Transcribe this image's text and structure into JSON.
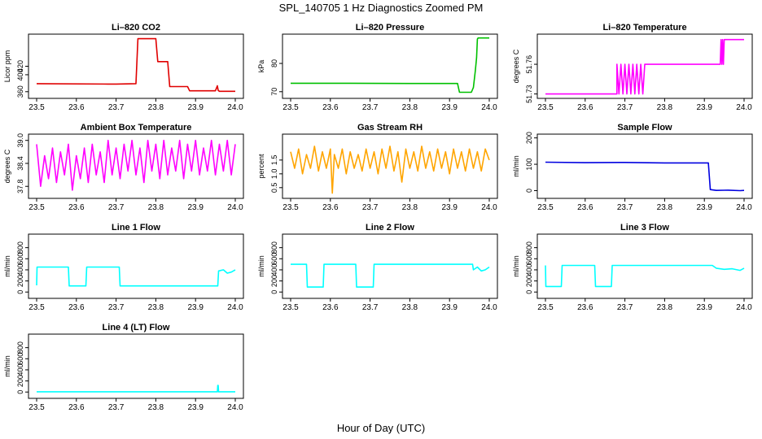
{
  "figure": {
    "title": "SPL_140705  1 Hz Diagnostics Zoomed PM",
    "xlabel": "Hour of Day (UTC)",
    "colors": {
      "red": "#e00000",
      "green": "#00c000",
      "magenta": "#ff00ff",
      "orange": "#ffa500",
      "blue": "#0000e0",
      "cyan": "#00ffff",
      "axis": "#000000"
    }
  },
  "chart_data": [
    {
      "id": "co2",
      "type": "line",
      "title": "Li–820 CO2",
      "ylabel": "Licor ppm",
      "color": "red",
      "xlim": [
        23.5,
        24.0
      ],
      "ylim": [
        350,
        490
      ],
      "xticks": [
        "23.5",
        "23.6",
        "23.7",
        "23.8",
        "23.9",
        "24.0"
      ],
      "yticks": [
        {
          "v": 360,
          "label": "360"
        },
        {
          "v": 400,
          "label": "400"
        },
        {
          "v": 420,
          "label": "420"
        }
      ],
      "x": [
        23.5,
        23.68,
        23.7,
        23.75,
        23.755,
        23.8,
        23.805,
        23.83,
        23.835,
        23.88,
        23.885,
        23.95,
        23.955,
        23.957,
        23.96,
        24.0
      ],
      "y": [
        379,
        378,
        378,
        379,
        485,
        485,
        431,
        431,
        372,
        372,
        362,
        362,
        374,
        363,
        361,
        361
      ]
    },
    {
      "id": "pressure",
      "type": "line",
      "title": "Li–820 Pressure",
      "ylabel": "kPa",
      "color": "green",
      "xlim": [
        23.5,
        24.0
      ],
      "ylim": [
        68.5,
        89.5
      ],
      "xticks": [
        "23.5",
        "23.6",
        "23.7",
        "23.8",
        "23.9",
        "24.0"
      ],
      "yticks": [
        {
          "v": 70,
          "label": "70"
        },
        {
          "v": 80,
          "label": "80"
        }
      ],
      "x": [
        23.5,
        23.65,
        23.8,
        23.92,
        23.925,
        23.955,
        23.96,
        23.965,
        23.968,
        23.97,
        23.972,
        24.0
      ],
      "y": [
        73.0,
        73.0,
        72.9,
        72.9,
        69.8,
        69.8,
        71.5,
        77.5,
        82.0,
        88.6,
        89.0,
        89.0
      ]
    },
    {
      "id": "licor_temp",
      "type": "line",
      "title": "Li–820 Temperature",
      "ylabel": "degrees C",
      "color": "magenta",
      "xlim": [
        23.5,
        24.0
      ],
      "ylim": [
        51.728,
        51.788
      ],
      "xticks": [
        "23.5",
        "23.6",
        "23.7",
        "23.8",
        "23.9",
        "24.0"
      ],
      "yticks": [
        {
          "v": 51.73,
          "label": "51.73"
        },
        {
          "v": 51.76,
          "label": "51.76"
        }
      ],
      "x": [
        23.5,
        23.68,
        23.68,
        23.685,
        23.69,
        23.695,
        23.7,
        23.705,
        23.71,
        23.715,
        23.72,
        23.725,
        23.73,
        23.735,
        23.74,
        23.745,
        23.75,
        23.755,
        23.94,
        23.942,
        23.944,
        23.946,
        23.948,
        23.95,
        23.952,
        24.0
      ],
      "y": [
        51.73,
        51.73,
        51.76,
        51.73,
        51.76,
        51.73,
        51.76,
        51.73,
        51.76,
        51.73,
        51.76,
        51.73,
        51.76,
        51.73,
        51.76,
        51.73,
        51.76,
        51.76,
        51.76,
        51.785,
        51.76,
        51.785,
        51.76,
        51.785,
        51.785,
        51.785
      ]
    },
    {
      "id": "box_temp",
      "type": "line",
      "title": "Ambient Box Temperature",
      "ylabel": "degrees C",
      "color": "magenta",
      "xlim": [
        23.5,
        24.0
      ],
      "ylim": [
        37.55,
        39.1
      ],
      "xticks": [
        "23.5",
        "23.6",
        "23.7",
        "23.8",
        "23.9",
        "24.0"
      ],
      "yticks": [
        {
          "v": 37.8,
          "label": "37.8"
        },
        {
          "v": 38.4,
          "label": "38.4"
        },
        {
          "v": 39.0,
          "label": "39.0"
        }
      ],
      "x": [
        23.5,
        23.51,
        23.52,
        23.53,
        23.54,
        23.55,
        23.56,
        23.57,
        23.58,
        23.59,
        23.6,
        23.61,
        23.62,
        23.63,
        23.64,
        23.65,
        23.66,
        23.67,
        23.68,
        23.69,
        23.7,
        23.71,
        23.72,
        23.73,
        23.74,
        23.75,
        23.76,
        23.77,
        23.78,
        23.79,
        23.8,
        23.81,
        23.82,
        23.83,
        23.84,
        23.85,
        23.86,
        23.87,
        23.88,
        23.89,
        23.9,
        23.91,
        23.92,
        23.93,
        23.94,
        23.95,
        23.96,
        23.97,
        23.98,
        23.99,
        24.0
      ],
      "y": [
        38.9,
        37.8,
        38.6,
        38.0,
        38.8,
        37.9,
        38.7,
        38.1,
        38.9,
        37.7,
        38.6,
        38.0,
        38.8,
        37.9,
        38.9,
        38.1,
        38.7,
        37.9,
        39.0,
        38.1,
        38.8,
        38.0,
        38.9,
        38.2,
        39.0,
        38.1,
        38.8,
        37.9,
        39.0,
        38.2,
        38.9,
        38.0,
        39.0,
        38.1,
        38.8,
        38.2,
        39.0,
        38.0,
        38.9,
        38.2,
        39.0,
        38.1,
        38.8,
        38.2,
        39.0,
        38.1,
        38.9,
        38.2,
        39.0,
        38.1,
        38.9
      ]
    },
    {
      "id": "rh",
      "type": "line",
      "title": "Gas Stream RH",
      "ylabel": "percent",
      "color": "orange",
      "xlim": [
        23.5,
        24.0
      ],
      "ylim": [
        0.2,
        2.35
      ],
      "xticks": [
        "23.5",
        "23.6",
        "23.7",
        "23.8",
        "23.9",
        "24.0"
      ],
      "yticks": [
        {
          "v": 0.5,
          "label": "0.5"
        },
        {
          "v": 1.0,
          "label": "1.0"
        },
        {
          "v": 1.5,
          "label": "1.5"
        }
      ],
      "x": [
        23.5,
        23.51,
        23.52,
        23.53,
        23.54,
        23.55,
        23.56,
        23.57,
        23.58,
        23.59,
        23.6,
        23.605,
        23.61,
        23.62,
        23.63,
        23.64,
        23.65,
        23.66,
        23.67,
        23.68,
        23.69,
        23.7,
        23.71,
        23.72,
        23.73,
        23.74,
        23.75,
        23.76,
        23.77,
        23.78,
        23.79,
        23.8,
        23.81,
        23.82,
        23.83,
        23.84,
        23.85,
        23.86,
        23.87,
        23.88,
        23.89,
        23.9,
        23.91,
        23.92,
        23.93,
        23.94,
        23.95,
        23.96,
        23.97,
        23.98,
        23.99,
        24.0
      ],
      "y": [
        1.8,
        1.2,
        1.9,
        1.0,
        1.7,
        1.2,
        2.0,
        1.1,
        1.8,
        1.2,
        1.9,
        0.3,
        1.7,
        1.2,
        1.9,
        1.0,
        1.8,
        1.2,
        1.7,
        1.1,
        1.9,
        1.2,
        1.8,
        1.0,
        1.9,
        1.2,
        2.0,
        1.1,
        1.8,
        0.7,
        1.9,
        1.2,
        1.8,
        1.1,
        2.0,
        1.2,
        1.8,
        1.1,
        1.9,
        1.2,
        1.8,
        1.0,
        1.9,
        1.2,
        1.8,
        1.1,
        1.9,
        1.2,
        1.8,
        1.1,
        1.9,
        1.5
      ]
    },
    {
      "id": "sample_flow",
      "type": "line",
      "title": "Sample Flow",
      "ylabel": "ml/min",
      "color": "blue",
      "xlim": [
        23.5,
        24.0
      ],
      "ylim": [
        -20,
        205
      ],
      "xticks": [
        "23.5",
        "23.6",
        "23.7",
        "23.8",
        "23.9",
        "24.0"
      ],
      "yticks": [
        {
          "v": 0,
          "label": "0"
        },
        {
          "v": 100,
          "label": "100"
        },
        {
          "v": 200,
          "label": "200"
        }
      ],
      "x": [
        23.5,
        23.6,
        23.7,
        23.8,
        23.91,
        23.915,
        23.93,
        23.96,
        23.99,
        24.0
      ],
      "y": [
        108,
        106,
        107,
        105,
        105,
        4,
        1,
        2,
        0,
        1
      ]
    },
    {
      "id": "line1",
      "type": "line",
      "title": "Line 1 Flow",
      "ylabel": "ml/min",
      "color": "cyan",
      "xlim": [
        23.5,
        24.0
      ],
      "ylim": [
        -70,
        1000
      ],
      "xticks": [
        "23.5",
        "23.6",
        "23.7",
        "23.8",
        "23.9",
        "24.0"
      ],
      "yticks": [
        {
          "v": 0,
          "label": "0"
        },
        {
          "v": 200,
          "label": "200"
        },
        {
          "v": 400,
          "label": "400"
        },
        {
          "v": 600,
          "label": "600"
        },
        {
          "v": 800,
          "label": "800"
        }
      ],
      "x": [
        23.5,
        23.501,
        23.58,
        23.582,
        23.624,
        23.626,
        23.708,
        23.71,
        23.956,
        23.958,
        23.97,
        23.98,
        23.99,
        24.0
      ],
      "y": [
        120,
        450,
        450,
        110,
        110,
        450,
        450,
        110,
        110,
        380,
        400,
        340,
        360,
        400
      ]
    },
    {
      "id": "line2",
      "type": "line",
      "title": "Line 2 Flow",
      "ylabel": "ml/min",
      "color": "cyan",
      "xlim": [
        23.5,
        24.0
      ],
      "ylim": [
        -70,
        1000
      ],
      "xticks": [
        "23.5",
        "23.6",
        "23.7",
        "23.8",
        "23.9",
        "24.0"
      ],
      "yticks": [
        {
          "v": 0,
          "label": "0"
        },
        {
          "v": 200,
          "label": "200"
        },
        {
          "v": 400,
          "label": "400"
        },
        {
          "v": 600,
          "label": "600"
        },
        {
          "v": 800,
          "label": "800"
        }
      ],
      "x": [
        23.5,
        23.54,
        23.542,
        23.582,
        23.584,
        23.664,
        23.666,
        23.708,
        23.71,
        23.958,
        23.96,
        23.97,
        23.98,
        23.99,
        24.0
      ],
      "y": [
        500,
        500,
        90,
        90,
        500,
        500,
        90,
        90,
        500,
        500,
        400,
        450,
        380,
        400,
        450
      ]
    },
    {
      "id": "line3",
      "type": "line",
      "title": "Line 3 Flow",
      "ylabel": "ml/min",
      "color": "cyan",
      "xlim": [
        23.5,
        24.0
      ],
      "ylim": [
        -70,
        1000
      ],
      "xticks": [
        "23.5",
        "23.6",
        "23.7",
        "23.8",
        "23.9",
        "24.0"
      ],
      "yticks": [
        {
          "v": 0,
          "label": "0"
        },
        {
          "v": 200,
          "label": "200"
        },
        {
          "v": 400,
          "label": "400"
        },
        {
          "v": 600,
          "label": "600"
        },
        {
          "v": 800,
          "label": "800"
        }
      ],
      "x": [
        23.5,
        23.501,
        23.54,
        23.542,
        23.624,
        23.626,
        23.666,
        23.668,
        23.92,
        23.93,
        23.95,
        23.97,
        23.99,
        24.0
      ],
      "y": [
        480,
        100,
        100,
        480,
        480,
        100,
        100,
        480,
        480,
        430,
        410,
        420,
        390,
        430
      ]
    },
    {
      "id": "line4",
      "type": "line",
      "title": "Line 4 (LT) Flow",
      "ylabel": "ml/min",
      "color": "cyan",
      "xlim": [
        23.5,
        24.0
      ],
      "ylim": [
        -70,
        1000
      ],
      "xticks": [
        "23.5",
        "23.6",
        "23.7",
        "23.8",
        "23.9",
        "24.0"
      ],
      "yticks": [
        {
          "v": 0,
          "label": "0"
        },
        {
          "v": 200,
          "label": "200"
        },
        {
          "v": 400,
          "label": "400"
        },
        {
          "v": 600,
          "label": "600"
        },
        {
          "v": 800,
          "label": "800"
        }
      ],
      "x": [
        23.5,
        23.955,
        23.956,
        23.957,
        23.958,
        24.0
      ],
      "y": [
        5,
        5,
        120,
        120,
        5,
        5
      ]
    }
  ]
}
